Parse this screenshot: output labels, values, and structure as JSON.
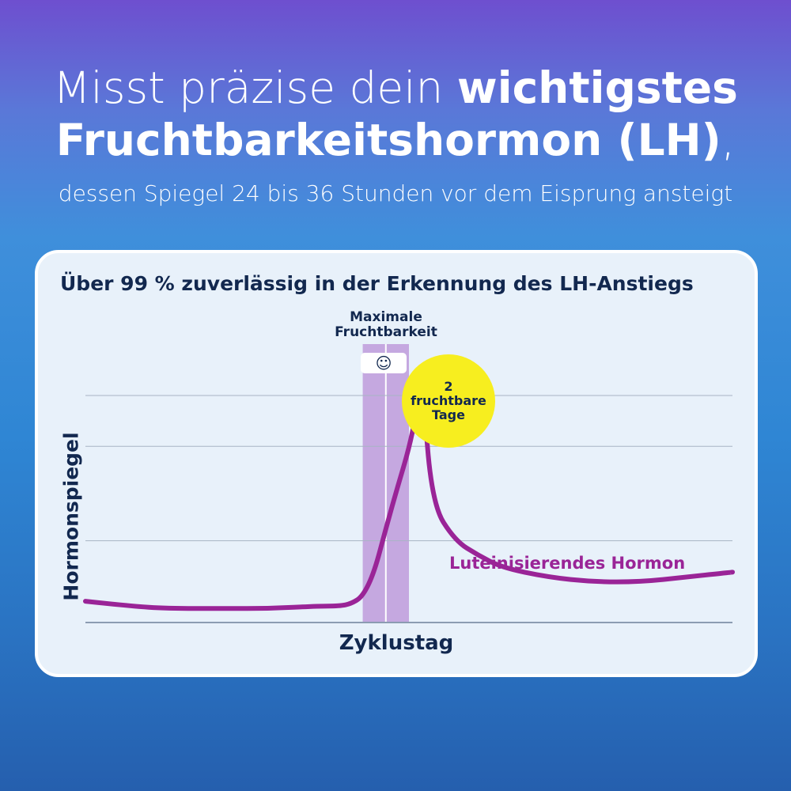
{
  "headline": {
    "line1_light": "Misst präzise dein ",
    "line1_bold": "wichtigstes",
    "line2_bold": "Fruchtbarkeitshormon (LH)",
    "line2_comma": ",",
    "subline": "dessen Spiegel 24 bis 36 Stunden vor dem Eisprung ansteigt"
  },
  "colors": {
    "lh_curve": "#9a2497",
    "fertile_band": "#c5a8e0",
    "bubble": "#f7ee1f",
    "text_dark": "#12284f"
  },
  "chart_data": {
    "type": "line",
    "title": "Über 99 % zuverlässig in der Erkennung des LH-Anstiegs",
    "xlabel": "Zyklustag",
    "ylabel": "Hormonspiegel",
    "xlim": [
      0,
      28
    ],
    "ylim": [
      0,
      100
    ],
    "grid": true,
    "gridlines_y": [
      40,
      79,
      100
    ],
    "series": [
      {
        "name": "Luteinisierendes Hormon",
        "x": [
          0,
          2,
          3.5,
          6,
          8,
          10,
          11,
          11.5,
          12,
          12.5,
          13,
          13.5,
          14,
          14.3,
          14.6,
          15,
          16,
          17,
          18,
          20,
          22,
          24,
          26,
          28
        ],
        "y": [
          15,
          13,
          12,
          12,
          12,
          13,
          13,
          14,
          17,
          27,
          45,
          62,
          78,
          92,
          103,
          55,
          40,
          34,
          29,
          25,
          23,
          23,
          25,
          27
        ]
      }
    ],
    "annotations": {
      "fertile_window": {
        "label": "Maximale Fruchtbarkeit",
        "x_start": 12,
        "x_end": 14,
        "peak_x": 13
      },
      "smiley": "☺",
      "bubble": {
        "number": "2",
        "line2": "fruchtbare",
        "line3": "Tage"
      }
    }
  }
}
